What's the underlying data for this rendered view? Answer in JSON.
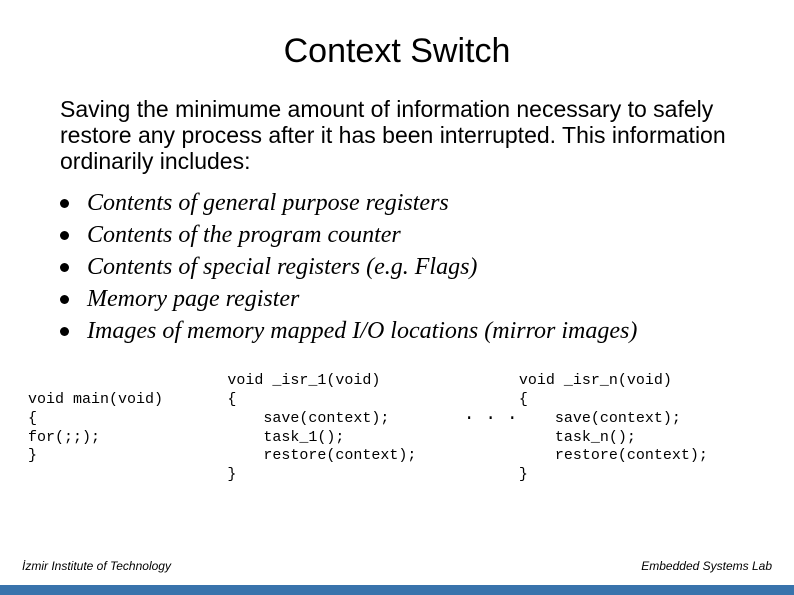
{
  "title": "Context Switch",
  "intro": "Saving the minimume amount of information necessary to safely restore any process after it has been interrupted. This information ordinarily includes:",
  "bullets": [
    "Contents of general purpose registers",
    "Contents of the program counter",
    "Contents of special registers (e.g. Flags)",
    "Memory page register",
    "Images of memory mapped I/O locations (mirror images)"
  ],
  "code": {
    "main": "void main(void)\n{\nfor(;;);\n}",
    "isr1": "void _isr_1(void)\n{\n    save(context);\n    task_1();\n    restore(context);\n}",
    "dots": ". . .",
    "isrn": "void _isr_n(void)\n{\n    save(context);\n    task_n();\n    restore(context);\n}"
  },
  "footer": {
    "left": "İzmir Institute of Technology",
    "right": "Embedded Systems Lab"
  },
  "colors": {
    "bar": "#3973ac",
    "background": "#ffffff",
    "text": "#000000"
  },
  "fonts": {
    "title_size": 34,
    "intro_size": 23,
    "bullet_size": 24,
    "code_size": 15,
    "footer_size": 12
  }
}
